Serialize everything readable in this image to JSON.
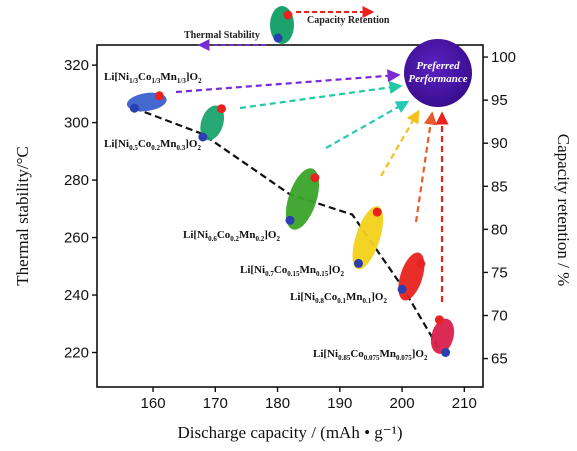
{
  "chart_data": {
    "type": "scatter",
    "xlabel": "Discharge capacity / (mAh • g⁻¹)",
    "ylabel_left": "Thermal stability/°C",
    "ylabel_right": "Capacity retention / %",
    "xlim": [
      151,
      213
    ],
    "ylim_left": [
      208,
      327
    ],
    "ylim_right": [
      61.7,
      101.4
    ],
    "x_ticks": [
      160,
      170,
      180,
      190,
      200,
      210
    ],
    "y_left_ticks": [
      220,
      240,
      260,
      280,
      300,
      320
    ],
    "y_right_ticks": [
      65,
      70,
      75,
      80,
      85,
      90,
      95,
      100
    ],
    "materials": [
      {
        "label_main": "Li[Ni",
        "sub1": "1/3",
        "mid1": "Co",
        "sub2": "1/3",
        "mid2": "Mn",
        "sub3": "1/3",
        "tail": "]O",
        "sub4": "2",
        "color": "#3a5fcd",
        "capacity": 159,
        "thermal": 305,
        "retention": 95.4
      },
      {
        "label_main": "Li[Ni",
        "sub1": "0.5",
        "mid1": "Co",
        "sub2": "0.2",
        "mid2": "Mn",
        "sub3": "0.3",
        "tail": "]O",
        "sub4": "2",
        "color": "#1aa36a",
        "capacity": 169,
        "thermal": 296,
        "retention": 94.0
      },
      {
        "label_main": "Li[Ni",
        "sub1": "0.6",
        "mid1": "Co",
        "sub2": "0.2",
        "mid2": "Mn",
        "sub3": "0.2",
        "tail": "]O",
        "sub4": "2",
        "color": "#3aa32a",
        "capacity": 183,
        "thermal": 275,
        "retention": 85.8
      },
      {
        "label_main": "Li[Ni",
        "sub1": "0.7",
        "mid1": "Co",
        "sub2": "0.15",
        "mid2": "Mn",
        "sub3": "0.15",
        "tail": "]O",
        "sub4": "2",
        "color": "#f2d21a",
        "capacity": 194,
        "thermal": 262,
        "retention": 78.0
      },
      {
        "label_main": "Li[Ni",
        "sub1": "0.8",
        "mid1": "Co",
        "sub2": "0.1",
        "mid2": "Mn",
        "sub3": "0.1",
        "tail": "]O",
        "sub4": "2",
        "color": "#e8231f",
        "capacity": 201,
        "thermal": 245,
        "retention": 75.0
      },
      {
        "label_main": "Li[Ni",
        "sub1": "0.85",
        "mid1": "Co",
        "sub2": "0.075",
        "mid2": "Mn",
        "sub3": "0.075",
        "tail": "]O",
        "sub4": "2",
        "color": "#d91f4a",
        "capacity": 206,
        "thermal": 222,
        "retention": 67.3
      }
    ],
    "points_thermal": [
      {
        "x": 157,
        "y": 305
      },
      {
        "x": 168,
        "y": 295
      },
      {
        "x": 182,
        "y": 266
      },
      {
        "x": 193,
        "y": 251
      },
      {
        "x": 200,
        "y": 242
      },
      {
        "x": 207,
        "y": 220
      }
    ],
    "points_retention": [
      {
        "x": 161,
        "y": 95.5
      },
      {
        "x": 171,
        "y": 94.0
      },
      {
        "x": 186,
        "y": 86.0
      },
      {
        "x": 196,
        "y": 82.0
      },
      {
        "x": 203,
        "y": 76.0
      },
      {
        "x": 206,
        "y": 69.5
      }
    ],
    "trend_thermal": [
      [
        157,
        305
      ],
      [
        168,
        296
      ],
      [
        182,
        275
      ],
      [
        192,
        268
      ],
      [
        200,
        243
      ],
      [
        206,
        221
      ]
    ],
    "legend": {
      "thermal": "Thermal Stability",
      "retention": "Capacity Retention",
      "thermal_color": "#7b2bd6",
      "retention_color": "#e8231f"
    },
    "target": {
      "label_line1": "Preferred",
      "label_line2": "Performance",
      "color": "#4a14a8"
    },
    "arrows": [
      {
        "color": "#7b2bd6"
      },
      {
        "color": "#1ec9a6"
      },
      {
        "color": "#26c9b4"
      },
      {
        "color": "#f2c21a"
      },
      {
        "color": "#ea5a2c"
      },
      {
        "color": "#e8231f"
      }
    ]
  }
}
